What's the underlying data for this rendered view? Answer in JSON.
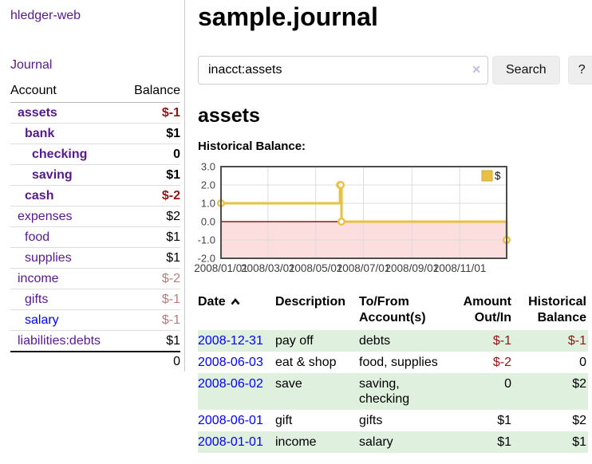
{
  "app": {
    "title": "hledger-web"
  },
  "colors": {
    "link_purple": "#551a8b",
    "link_blue": "#0000ee",
    "negative_strong": "#941414",
    "negative_soft": "#b97c7c",
    "row_shade_green": "#dff0df",
    "chart_gold": "#E9C044"
  },
  "sidebar": {
    "journal_link": "Journal",
    "headers": {
      "account": "Account",
      "balance": "Balance"
    },
    "accounts": [
      {
        "name": "assets",
        "level": 1,
        "bold": true,
        "link_color": "purple",
        "balance": "$-1",
        "balance_style": "neg-strong"
      },
      {
        "name": "bank",
        "level": 2,
        "bold": true,
        "link_color": "purple",
        "balance": "$1",
        "balance_style": "normal"
      },
      {
        "name": "checking",
        "level": 3,
        "bold": true,
        "link_color": "purple",
        "balance": "0",
        "balance_style": "normal"
      },
      {
        "name": "saving",
        "level": 3,
        "bold": true,
        "link_color": "purple",
        "balance": "$1",
        "balance_style": "normal"
      },
      {
        "name": "cash",
        "level": 2,
        "bold": true,
        "link_color": "purple",
        "balance": "$-2",
        "balance_style": "neg-strong"
      },
      {
        "name": "expenses",
        "level": 1,
        "bold": false,
        "link_color": "purple",
        "balance": "$2",
        "balance_style": "normal"
      },
      {
        "name": "food",
        "level": 2,
        "bold": false,
        "link_color": "purple",
        "balance": "$1",
        "balance_style": "normal"
      },
      {
        "name": "supplies",
        "level": 2,
        "bold": false,
        "link_color": "purple",
        "balance": "$1",
        "balance_style": "normal"
      },
      {
        "name": "income",
        "level": 1,
        "bold": false,
        "link_color": "purple",
        "balance": "$-2",
        "balance_style": "neg-soft"
      },
      {
        "name": "gifts",
        "level": 2,
        "bold": false,
        "link_color": "purple",
        "balance": "$-1",
        "balance_style": "neg-soft"
      },
      {
        "name": "salary",
        "level": 2,
        "bold": false,
        "link_color": "blue",
        "balance": "$-1",
        "balance_style": "neg-soft"
      },
      {
        "name": "liabilities:debts",
        "level": 1,
        "bold": false,
        "link_color": "purple",
        "balance": "$1",
        "balance_style": "normal"
      }
    ],
    "total": "0"
  },
  "main": {
    "title": "sample.journal",
    "search": {
      "value": "inacct:assets",
      "clear_icon": "✕",
      "button_label": "Search",
      "help_label": "?"
    },
    "account_heading": "assets",
    "chart_heading": "Historical Balance:",
    "register": {
      "headers": {
        "date": "Date",
        "description": "Description",
        "accounts": "To/From Account(s)",
        "amount": "Amount Out/In",
        "balance": "Historical Balance"
      },
      "sort": "ascending",
      "rows": [
        {
          "date": "2008-12-31",
          "description": "pay off",
          "accounts": "debts",
          "amount": "$-1",
          "amount_negative": true,
          "balance": "$-1",
          "balance_negative": true,
          "shaded": true
        },
        {
          "date": "2008-06-03",
          "description": "eat & shop",
          "accounts": "food, supplies",
          "amount": "$-2",
          "amount_negative": true,
          "balance": "0",
          "balance_negative": false,
          "shaded": false
        },
        {
          "date": "2008-06-02",
          "description": "save",
          "accounts": "saving, checking",
          "amount": "0",
          "amount_negative": false,
          "balance": "$2",
          "balance_negative": false,
          "shaded": true
        },
        {
          "date": "2008-06-01",
          "description": "gift",
          "accounts": "gifts",
          "amount": "$1",
          "amount_negative": false,
          "balance": "$2",
          "balance_negative": false,
          "shaded": false
        },
        {
          "date": "2008-01-01",
          "description": "income",
          "accounts": "salary",
          "amount": "$1",
          "amount_negative": false,
          "balance": "$1",
          "balance_negative": false,
          "shaded": true
        }
      ]
    }
  },
  "chart_data": {
    "type": "line",
    "step": true,
    "title": "Historical Balance:",
    "x": [
      "2008-01-01",
      "2008-06-01",
      "2008-06-02",
      "2008-06-03",
      "2008-12-31"
    ],
    "series": [
      {
        "name": "$",
        "color": "#E9C044",
        "values": [
          1,
          2,
          2,
          0,
          -1
        ]
      }
    ],
    "xlim": [
      "2008-01-01",
      "2008-12-31"
    ],
    "ylim": [
      -2,
      3
    ],
    "yticks": [
      3.0,
      2.0,
      1.0,
      0.0,
      -1.0,
      -2.0
    ],
    "xtick_labels": [
      "2008/01/01",
      "2008/03/01",
      "2008/05/01",
      "2008/07/01",
      "2008/09/01",
      "2008/11/01"
    ],
    "grid": true,
    "legend": {
      "label": "$",
      "position": "top-right"
    },
    "negative_region_fill": "#fcdede",
    "zero_line_color": "#8b1a1a",
    "plot_border_color": "#4d4d4d"
  }
}
